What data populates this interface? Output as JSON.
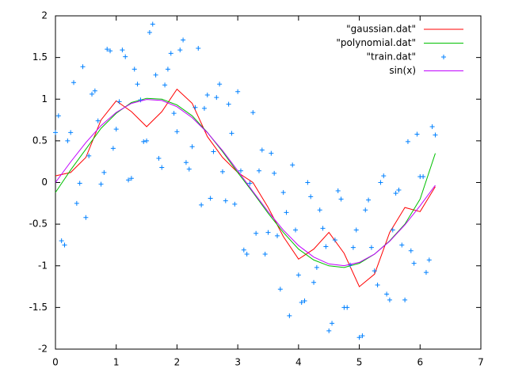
{
  "chart_data": {
    "type": "line",
    "xlim": [
      0,
      7
    ],
    "xticks": [
      0,
      1,
      2,
      3,
      4,
      5,
      6,
      7
    ],
    "ylim": [
      -2,
      2
    ],
    "yticks": [
      -2,
      -1.5,
      -1,
      -0.5,
      0,
      0.5,
      1,
      1.5,
      2
    ],
    "legend": "top-right",
    "series": [
      {
        "name": "\"gaussian.dat\"",
        "color": "#ff0000",
        "style": "line",
        "x": [
          0,
          0.25,
          0.5,
          0.75,
          1,
          1.25,
          1.5,
          1.75,
          2,
          2.25,
          2.5,
          2.75,
          3,
          3.25,
          3.5,
          3.75,
          4,
          4.25,
          4.5,
          4.75,
          5,
          5.25,
          5.5,
          5.75,
          6,
          6.25
        ],
        "values": [
          0.08,
          0.12,
          0.3,
          0.75,
          0.98,
          0.85,
          0.67,
          0.85,
          1.12,
          0.95,
          0.55,
          0.3,
          0.12,
          0.0,
          -0.3,
          -0.65,
          -0.92,
          -0.8,
          -0.6,
          -0.85,
          -1.25,
          -1.1,
          -0.6,
          -0.3,
          -0.35,
          -0.05
        ]
      },
      {
        "name": "\"polynomial.dat\"",
        "color": "#00c000",
        "style": "line",
        "x": [
          0,
          0.25,
          0.5,
          0.75,
          1,
          1.25,
          1.5,
          1.75,
          2,
          2.25,
          2.5,
          2.75,
          3,
          3.25,
          3.5,
          3.75,
          4,
          4.25,
          4.5,
          4.75,
          5,
          5.25,
          5.5,
          5.75,
          6,
          6.25
        ],
        "values": [
          -0.12,
          0.15,
          0.4,
          0.65,
          0.83,
          0.96,
          1.01,
          1.0,
          0.93,
          0.8,
          0.6,
          0.37,
          0.12,
          -0.12,
          -0.37,
          -0.6,
          -0.8,
          -0.93,
          -1.0,
          -1.02,
          -0.97,
          -0.86,
          -0.7,
          -0.5,
          -0.2,
          0.35
        ]
      },
      {
        "name": "\"train.dat\"",
        "color": "#0080ff",
        "style": "points",
        "x": [
          0,
          0.1,
          0.2,
          0.3,
          0.4,
          0.5,
          0.6,
          0.7,
          0.8,
          0.9,
          1.0,
          1.1,
          1.2,
          1.3,
          1.4,
          1.5,
          1.6,
          1.7,
          1.8,
          1.9,
          2.0,
          2.1,
          2.2,
          2.3,
          2.4,
          2.5,
          2.6,
          2.7,
          2.8,
          2.9,
          3.0,
          3.1,
          3.2,
          3.3,
          3.4,
          3.5,
          3.6,
          3.7,
          3.8,
          3.9,
          4.0,
          4.1,
          4.2,
          4.3,
          4.4,
          4.5,
          4.6,
          4.7,
          4.8,
          4.9,
          5.0,
          5.1,
          5.2,
          5.3,
          5.4,
          5.5,
          5.6,
          5.7,
          5.8,
          5.9,
          6.0,
          6.1,
          6.2,
          0.05,
          0.15,
          0.25,
          0.35,
          0.45,
          0.55,
          0.65,
          0.75,
          0.85,
          0.95,
          1.05,
          1.15,
          1.25,
          1.35,
          1.45,
          1.55,
          1.65,
          1.75,
          1.85,
          1.95,
          2.05,
          2.15,
          2.25,
          2.35,
          2.45,
          2.55,
          2.65,
          2.75,
          2.85,
          2.95,
          3.05,
          3.15,
          3.25,
          3.35,
          3.45,
          3.55,
          3.65,
          3.75,
          3.85,
          3.95,
          4.05,
          4.15,
          4.25,
          4.35,
          4.45,
          4.55,
          4.65,
          4.75,
          4.85,
          4.95,
          5.05,
          5.15,
          5.25,
          5.35,
          5.45,
          5.55,
          5.65,
          5.75,
          5.85,
          5.95,
          6.05,
          6.15,
          6.25
        ],
        "values": [
          0.6,
          -0.7,
          0.5,
          1.2,
          -0.01,
          -0.42,
          1.06,
          0.74,
          0.12,
          1.58,
          0.64,
          1.59,
          0.03,
          1.36,
          0.99,
          0.5,
          1.9,
          0.29,
          1.17,
          1.55,
          0.61,
          1.71,
          0.16,
          0.9,
          -0.27,
          1.05,
          0.37,
          1.18,
          -0.22,
          0.59,
          1.09,
          -0.81,
          -0.01,
          -0.61,
          0.39,
          -0.6,
          0.11,
          -1.28,
          -0.36,
          0.21,
          -1.11,
          -1.42,
          -0.17,
          -1.02,
          -0.55,
          -1.78,
          -0.69,
          -0.2,
          -1.5,
          -0.78,
          -1.86,
          -0.33,
          -0.78,
          -1.23,
          0.08,
          -1.41,
          -0.13,
          -0.75,
          0.49,
          -0.97,
          0.07,
          -1.08,
          0.67,
          0.8,
          -0.75,
          0.6,
          -0.25,
          1.39,
          0.32,
          1.1,
          -0.02,
          1.6,
          0.41,
          0.97,
          1.51,
          0.05,
          1.18,
          0.49,
          1.8,
          1.29,
          0.18,
          1.36,
          0.83,
          1.59,
          0.24,
          0.43,
          1.61,
          0.89,
          -0.19,
          1.02,
          0.13,
          0.94,
          -0.26,
          0.14,
          -0.86,
          0.84,
          0.14,
          -0.86,
          0.35,
          -0.64,
          -0.12,
          -1.6,
          -0.57,
          -1.44,
          0,
          -1.2,
          -0.33,
          -0.77,
          -1.69,
          -0.1,
          -1.5,
          -0.99,
          -0.57,
          -1.84,
          -0.21,
          -1.06,
          0,
          -1.34,
          -0.57,
          -0.09,
          -1.41,
          -0.82,
          0.58,
          0.07,
          -0.93,
          0.57
        ]
      },
      {
        "name": "sin(x)",
        "color": "#c000ff",
        "style": "line",
        "x": [
          0,
          0.25,
          0.5,
          0.75,
          1,
          1.25,
          1.5,
          1.75,
          2,
          2.25,
          2.5,
          2.75,
          3,
          3.25,
          3.5,
          3.75,
          4,
          4.25,
          4.5,
          4.75,
          5,
          5.25,
          5.5,
          5.75,
          6,
          6.25
        ],
        "values": [
          0,
          0.247,
          0.479,
          0.682,
          0.841,
          0.949,
          0.997,
          0.984,
          0.909,
          0.778,
          0.598,
          0.382,
          0.141,
          -0.108,
          -0.351,
          -0.572,
          -0.757,
          -0.895,
          -0.978,
          -0.999,
          -0.959,
          -0.859,
          -0.706,
          -0.508,
          -0.279,
          -0.033
        ]
      }
    ]
  }
}
